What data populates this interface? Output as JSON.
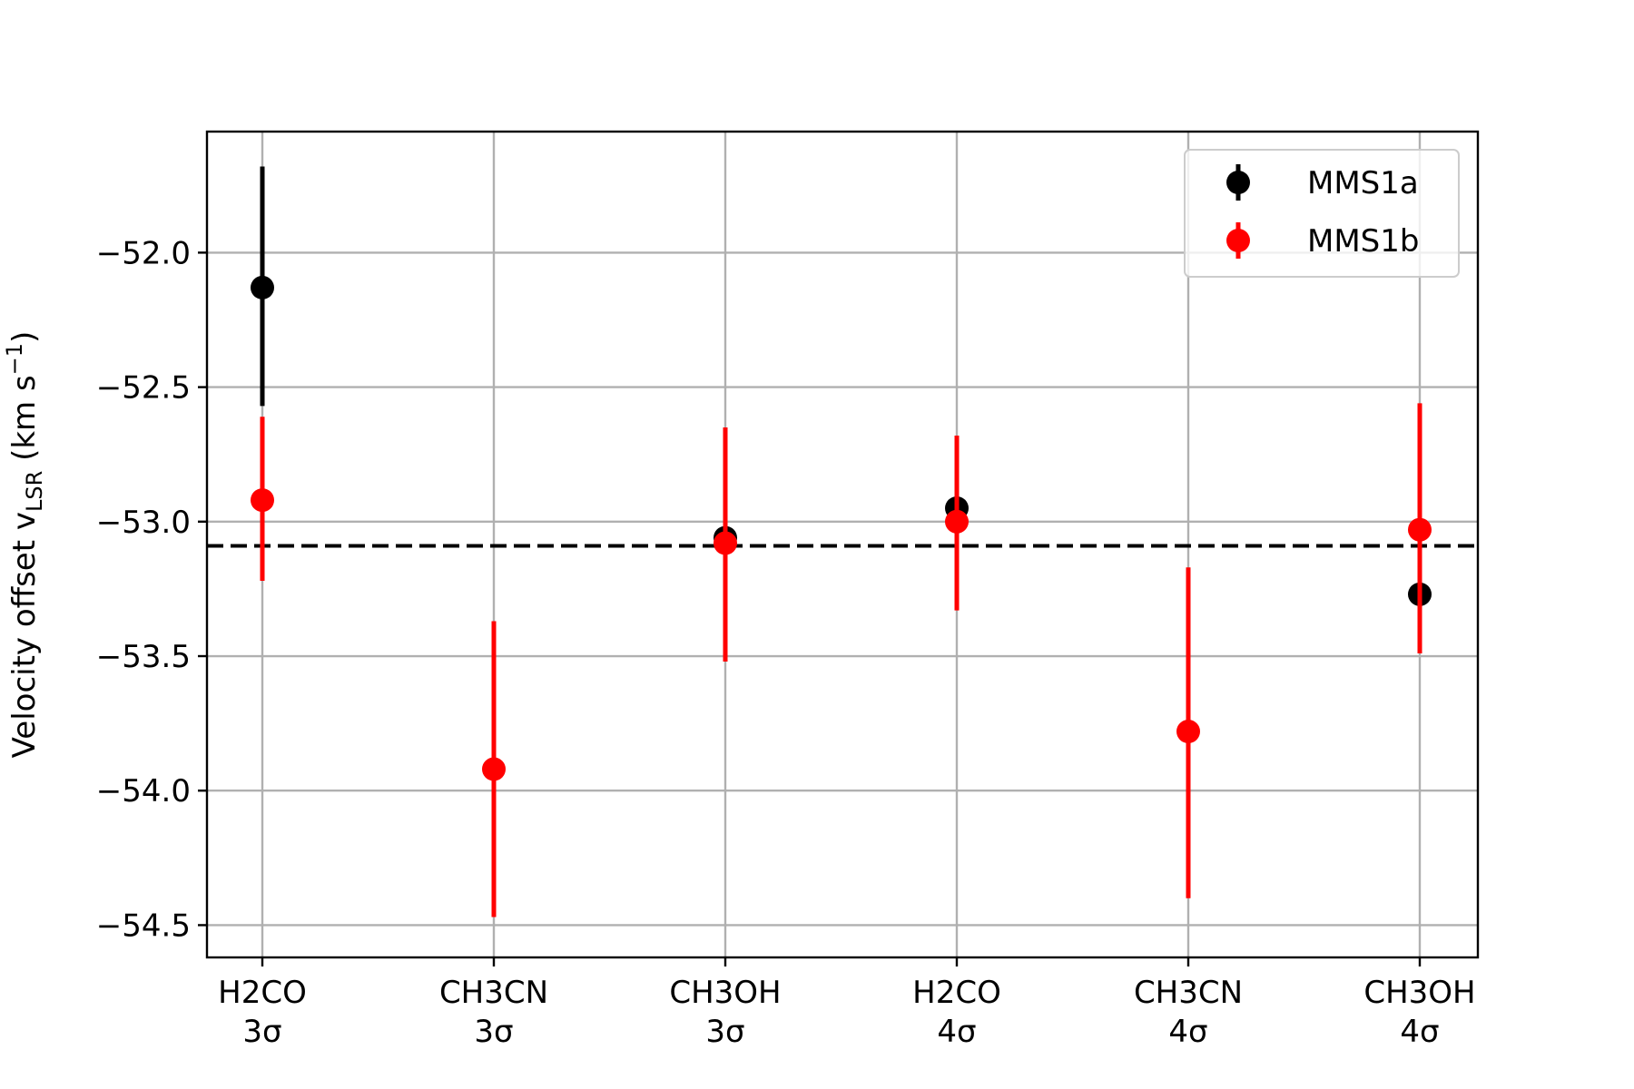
{
  "chart_data": {
    "type": "scatter",
    "categories": [
      [
        "H2CO",
        "3σ"
      ],
      [
        "CH3CN",
        "3σ"
      ],
      [
        "CH3OH",
        "3σ"
      ],
      [
        "H2CO",
        "4σ"
      ],
      [
        "CH3CN",
        "4σ"
      ],
      [
        "CH3OH",
        "4σ"
      ]
    ],
    "ylabel": "Velocity offset v_LSR (km s^-1)",
    "ylabel_parts": {
      "main": "Velocity offset v",
      "sub": "LSR",
      "unit_open": " (km s",
      "sup": "−1",
      "unit_close": ")"
    },
    "ylim": [
      -54.62,
      -51.55
    ],
    "yticks": [
      -52.0,
      -52.5,
      -53.0,
      -53.5,
      -54.0,
      -54.5
    ],
    "ytick_labels": [
      "−52.0",
      "−52.5",
      "−53.0",
      "−53.5",
      "−54.0",
      "−54.5"
    ],
    "grid": true,
    "legend_position": "top-right",
    "reference_line": {
      "y": -53.09,
      "style": "dashed",
      "color": "#000000"
    },
    "series": [
      {
        "name": "MMS1a",
        "color": "#000000",
        "points": [
          {
            "x": 0,
            "y": -52.13,
            "yerr_low": -52.57,
            "yerr_high": -51.68
          },
          {
            "x": 2,
            "y": -53.06,
            "yerr_low": -53.3,
            "yerr_high": -52.8
          },
          {
            "x": 3,
            "y": -52.95,
            "yerr_low": -53.15,
            "yerr_high": -52.75
          },
          {
            "x": 5,
            "y": -53.27,
            "yerr_low": -53.27,
            "yerr_high": -53.27
          }
        ]
      },
      {
        "name": "MMS1b",
        "color": "#ff0000",
        "points": [
          {
            "x": 0,
            "y": -52.92,
            "yerr_low": -53.22,
            "yerr_high": -52.61
          },
          {
            "x": 1,
            "y": -53.92,
            "yerr_low": -54.47,
            "yerr_high": -53.37
          },
          {
            "x": 2,
            "y": -53.08,
            "yerr_low": -53.52,
            "yerr_high": -52.65
          },
          {
            "x": 3,
            "y": -53.0,
            "yerr_low": -53.33,
            "yerr_high": -52.68
          },
          {
            "x": 4,
            "y": -53.78,
            "yerr_low": -54.4,
            "yerr_high": -53.17
          },
          {
            "x": 5,
            "y": -53.03,
            "yerr_low": -53.49,
            "yerr_high": -52.56
          }
        ]
      }
    ]
  }
}
